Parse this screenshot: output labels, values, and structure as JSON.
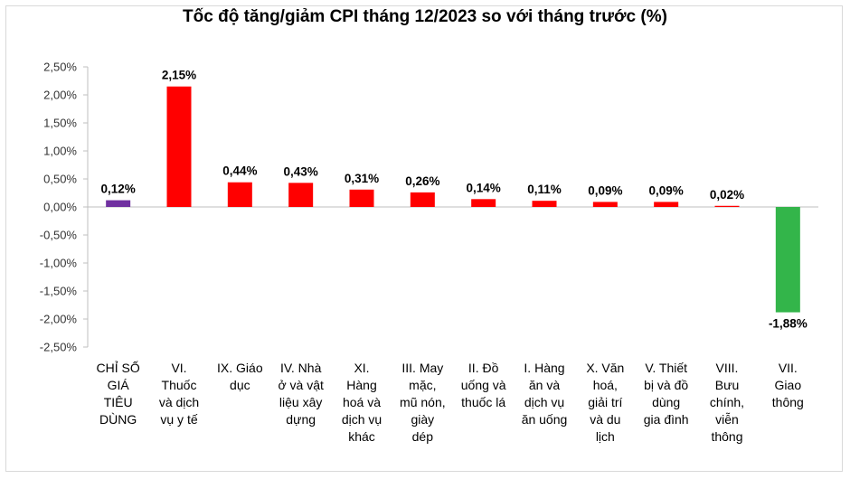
{
  "chart_data": {
    "type": "bar",
    "title": "Tốc độ tăng/giảm CPI tháng 12/2023 so với tháng trước (%)",
    "xlabel": "",
    "ylabel": "",
    "ylim": [
      -2.5,
      2.5
    ],
    "yticks": [
      "2,50%",
      "2,00%",
      "1,50%",
      "1,00%",
      "0,50%",
      "0,00%",
      "-0,50%",
      "-1,00%",
      "-1,50%",
      "-2,00%",
      "-2,50%"
    ],
    "grid": false,
    "categories": [
      "CHỈ SỐ GIÁ TIÊU DÙNG",
      "VI. Thuốc và dịch vụ y tế",
      "IX. Giáo dục",
      "IV. Nhà ở và vật liệu xây dựng",
      "XI. Hàng hoá và dịch vụ khác",
      "III. May mặc, mũ nón, giày dép",
      "II. Đồ uống và thuốc lá",
      "I. Hàng ăn và dịch vụ ăn uống",
      "X. Văn hoá, giải trí và du lịch",
      "V. Thiết bị và đồ dùng gia đình",
      "VIII. Bưu chính, viễn thông",
      "VII. Giao thông"
    ],
    "category_lines": [
      [
        "CHỈ SỐ",
        "GIÁ",
        "TIÊU",
        "DÙNG"
      ],
      [
        "VI.",
        "Thuốc",
        "và dịch",
        "vụ y tế"
      ],
      [
        "IX. Giáo",
        "dục"
      ],
      [
        "IV. Nhà",
        "ở và vật",
        "liệu xây",
        "dựng"
      ],
      [
        "XI.",
        "Hàng",
        "hoá và",
        "dịch vụ",
        "khác"
      ],
      [
        "III. May",
        "mặc,",
        "mũ nón,",
        "giày",
        "dép"
      ],
      [
        "II. Đồ",
        "uống và",
        "thuốc lá"
      ],
      [
        "I. Hàng",
        "ăn và",
        "dịch vụ",
        "ăn uống"
      ],
      [
        "X. Văn",
        "hoá,",
        "giải trí",
        "và du",
        "lịch"
      ],
      [
        "V. Thiết",
        "bị và đồ",
        "dùng",
        "gia đình"
      ],
      [
        "VIII.",
        "Bưu",
        "chính,",
        "viễn",
        "thông"
      ],
      [
        "VII.",
        "Giao",
        "thông"
      ]
    ],
    "values": [
      0.12,
      2.15,
      0.44,
      0.43,
      0.31,
      0.26,
      0.14,
      0.11,
      0.09,
      0.09,
      0.02,
      -1.88
    ],
    "labels": [
      "0,12%",
      "2,15%",
      "0,44%",
      "0,43%",
      "0,31%",
      "0,26%",
      "0,14%",
      "0,11%",
      "0,09%",
      "0,09%",
      "0,02%",
      "-1,88%"
    ],
    "colors": [
      "#7030a0",
      "#ff0000",
      "#ff0000",
      "#ff0000",
      "#ff0000",
      "#ff0000",
      "#ff0000",
      "#ff0000",
      "#ff0000",
      "#ff0000",
      "#ff0000",
      "#33b54a"
    ]
  }
}
